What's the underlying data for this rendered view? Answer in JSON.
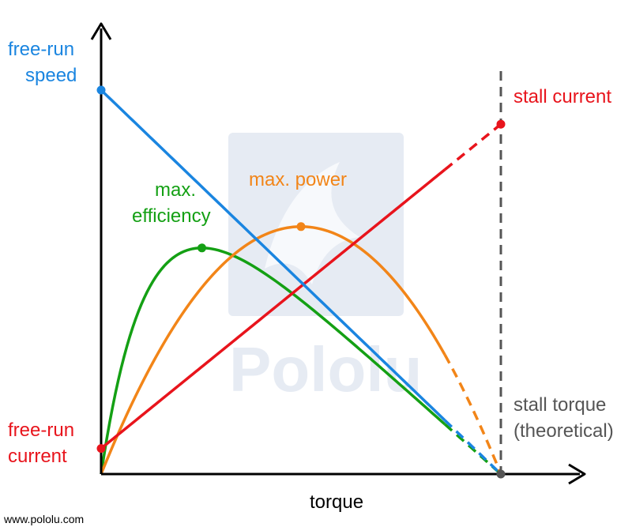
{
  "colors": {
    "speed": "#1a85e0",
    "current": "#e8141c",
    "power": "#f28518",
    "efficiency": "#14a014",
    "stall_torque": "#555555",
    "axis": "#000000",
    "watermark": "#e6ebf3"
  },
  "watermark": {
    "text": "Pololu"
  },
  "credit": "www.pololu.com",
  "chart_data": {
    "type": "line",
    "xlabel": "torque",
    "ylabel": "",
    "xlim": [
      0,
      1
    ],
    "ylim": [
      0,
      1
    ],
    "grid": false,
    "axis_arrows": true,
    "solid_until": 0.86,
    "stall_torque_x": 1.0,
    "series": [
      {
        "key": "speed",
        "kind": "linear",
        "y0": 0.9,
        "y1": 0.0,
        "label_lines": [
          "free-run",
          "speed"
        ],
        "label_anchor": "start",
        "label_color": "speed"
      },
      {
        "key": "current",
        "kind": "linear",
        "y0": 0.06,
        "y1": 0.82,
        "label_lines": [
          "free-run",
          "current"
        ],
        "label_anchor": "start",
        "label_color": "current",
        "end_label_lines": [
          "stall current"
        ]
      },
      {
        "key": "power",
        "kind": "power",
        "peak_x": 0.5,
        "peak_y": 0.58,
        "label_lines": [
          "max. power"
        ],
        "label_color": "power"
      },
      {
        "key": "efficiency",
        "kind": "efficiency",
        "peak_x": 0.22,
        "peak_y": 0.53,
        "label_lines": [
          "max.",
          "efficiency"
        ],
        "label_color": "efficiency"
      }
    ],
    "stall_torque_label_lines": [
      "stall torque",
      "(theoretical)"
    ]
  }
}
